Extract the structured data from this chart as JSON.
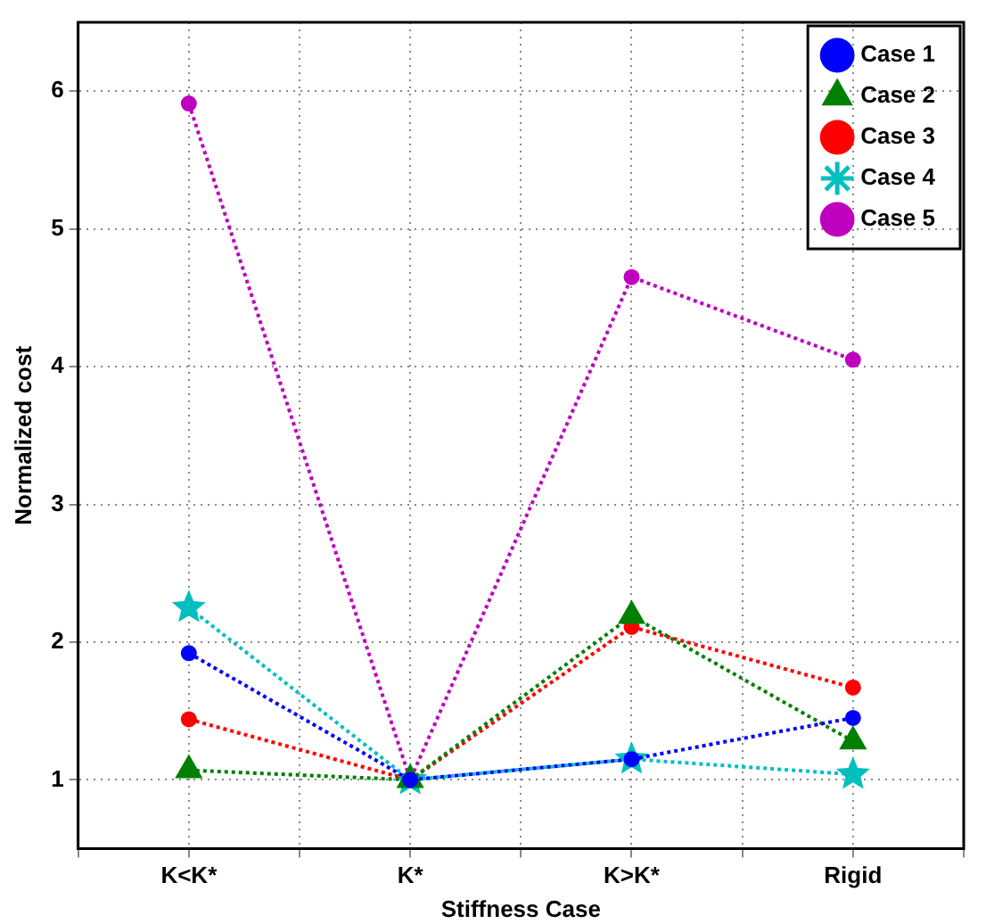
{
  "chart_data": {
    "type": "line",
    "xlabel": "Stiffness Case",
    "ylabel": "Normalized cost",
    "categories": [
      "K<K*",
      "K*",
      "K>K*",
      "Rigid"
    ],
    "series": [
      {
        "name": "Case 1",
        "color": "#0000ff",
        "marker": "circle",
        "values": [
          1.92,
          1.0,
          1.15,
          1.45
        ]
      },
      {
        "name": "Case 2",
        "color": "#008000",
        "marker": "triangle",
        "values": [
          1.07,
          1.0,
          2.19,
          1.28
        ]
      },
      {
        "name": "Case 3",
        "color": "#ff0000",
        "marker": "circle",
        "values": [
          1.44,
          1.0,
          2.11,
          1.67
        ]
      },
      {
        "name": "Case 4",
        "color": "#00bfbf",
        "marker": "star",
        "values": [
          2.25,
          1.0,
          1.15,
          1.04
        ]
      },
      {
        "name": "Case 5",
        "color": "#bf00bf",
        "marker": "circle",
        "values": [
          5.91,
          1.0,
          4.65,
          4.05
        ]
      }
    ],
    "ylim": [
      0.5,
      6.5
    ],
    "yticks": [
      1,
      2,
      3,
      4,
      5,
      6
    ],
    "grid": true,
    "legend": "top right",
    "line_style": "dotted"
  }
}
